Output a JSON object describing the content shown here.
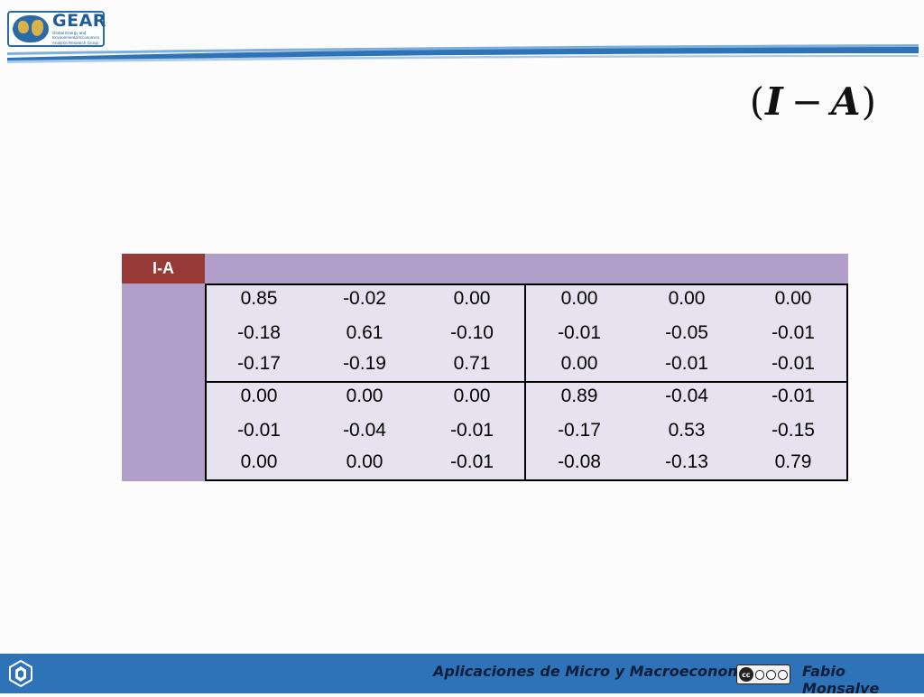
{
  "header": {
    "logo_text": "GEAR",
    "logo_subtitle": "Global Energy and Environmental Economics Analysis Research Group",
    "title_left": "(",
    "title_a": "I",
    "title_op": "−",
    "title_b": "A",
    "title_right": ")"
  },
  "matrix": {
    "label": "I-A",
    "rows": [
      [
        "0.85",
        "-0.02",
        "0.00",
        "0.00",
        "0.00",
        "0.00"
      ],
      [
        "-0.18",
        "0.61",
        "-0.10",
        "-0.01",
        "-0.05",
        "-0.01"
      ],
      [
        "-0.17",
        "-0.19",
        "0.71",
        "0.00",
        "-0.01",
        "-0.01"
      ],
      [
        "0.00",
        "0.00",
        "0.00",
        "0.89",
        "-0.04",
        "-0.01"
      ],
      [
        "-0.01",
        "-0.04",
        "-0.01",
        "-0.17",
        "0.53",
        "-0.15"
      ],
      [
        "0.00",
        "0.00",
        "-0.01",
        "-0.08",
        "-0.13",
        "0.79"
      ]
    ]
  },
  "footer": {
    "course": "Aplicaciones de Micro y Macroeconomía",
    "license_badge": "cc",
    "author": "Fabio Monsalve"
  },
  "colors": {
    "footer_bg": "#2e73b8",
    "label_bg": "#973a36",
    "panel_bg": "#b09fca",
    "grid_bg": "#e6e2ef"
  }
}
